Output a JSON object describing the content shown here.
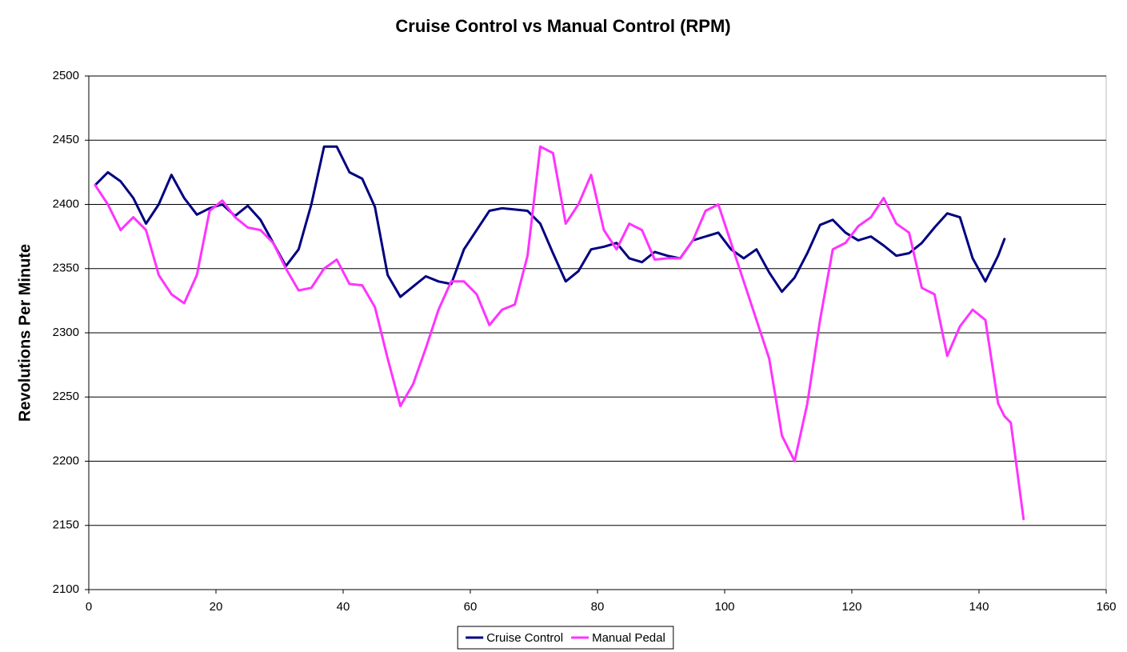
{
  "chart_data": {
    "type": "line",
    "title": "Cruise Control vs Manual Control (RPM)",
    "y_label": "Revolutions Per Minute",
    "x": [
      1,
      3,
      5,
      7,
      9,
      11,
      13,
      15,
      17,
      19,
      21,
      23,
      25,
      27,
      29,
      31,
      33,
      35,
      37,
      39,
      41,
      43,
      45,
      47,
      49,
      51,
      53,
      55,
      57,
      59,
      61,
      63,
      65,
      67,
      69,
      71,
      73,
      75,
      77,
      79,
      81,
      83,
      85,
      87,
      89,
      91,
      93,
      95,
      97,
      99,
      101,
      103,
      105,
      107,
      109,
      111,
      113,
      115,
      117,
      119,
      121,
      123,
      125,
      127,
      129,
      131,
      133,
      135,
      137,
      139,
      141,
      143,
      144,
      145,
      147
    ],
    "series": [
      {
        "name": "Cruise Control",
        "color": "#000080",
        "values": [
          2415,
          2425,
          2418,
          2405,
          2385,
          2400,
          2423,
          2405,
          2392,
          2397,
          2400,
          2391,
          2399,
          2388,
          2370,
          2352,
          2365,
          2400,
          2445,
          2445,
          2425,
          2420,
          2398,
          2345,
          2328,
          2336,
          2344,
          2340,
          2338,
          2365,
          2380,
          2395,
          2397,
          2396,
          2395,
          2385,
          2362,
          2340,
          2348,
          2365,
          2367,
          2370,
          2358,
          2355,
          2363,
          2360,
          2358,
          2372,
          2375,
          2378,
          2365,
          2358,
          2365,
          2347,
          2332,
          2343,
          2362,
          2384,
          2388,
          2378,
          2372,
          2375,
          2368,
          2360,
          2362,
          2370,
          2382,
          2393,
          2390,
          2358,
          2340,
          2360,
          2373,
          null,
          null
        ]
      },
      {
        "name": "Manual Pedal",
        "color": "#ff33ff",
        "values": [
          2415,
          2400,
          2380,
          2390,
          2380,
          2345,
          2330,
          2323,
          2345,
          2395,
          2403,
          2390,
          2382,
          2380,
          2370,
          2350,
          2333,
          2335,
          2350,
          2357,
          2338,
          2337,
          2320,
          2280,
          2243,
          2260,
          2288,
          2318,
          2340,
          2340,
          2330,
          2306,
          2318,
          2322,
          2360,
          2445,
          2440,
          2385,
          2400,
          2423,
          2380,
          2365,
          2385,
          2380,
          2357,
          2358,
          2358,
          2372,
          2395,
          2400,
          2370,
          2340,
          2310,
          2280,
          2220,
          2200,
          2245,
          2310,
          2365,
          2370,
          2383,
          2390,
          2405,
          2385,
          2378,
          2335,
          2330,
          2282,
          2305,
          2318,
          2310,
          2245,
          2235,
          2230,
          2155
        ]
      }
    ],
    "xlim": [
      0,
      160
    ],
    "xticks": [
      0,
      20,
      40,
      60,
      80,
      100,
      120,
      140,
      160
    ],
    "ylim": [
      2100,
      2500
    ],
    "yticks": [
      2100,
      2150,
      2200,
      2250,
      2300,
      2350,
      2400,
      2450,
      2500
    ],
    "grid": true,
    "legend": "bottom"
  }
}
